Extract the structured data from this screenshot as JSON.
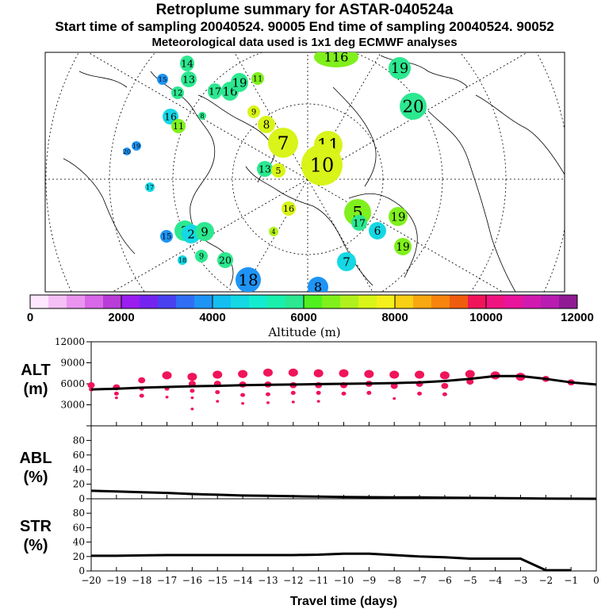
{
  "title": {
    "line1": "Retroplume summary for ASTAR-040524a",
    "line2": "Start time of sampling 20040524. 90005     End time of sampling 20040524. 90052",
    "line3": "Meteorological data used is 1x1 deg ECMWF analyses"
  },
  "colorbar": {
    "label": "Altitude (m)",
    "ticks": [
      "0",
      "2000",
      "4000",
      "6000",
      "8000",
      "10000",
      "12000"
    ],
    "colors": [
      "#ffe8ff",
      "#f5c0f5",
      "#ea94ef",
      "#d868e8",
      "#b83cd8",
      "#9a1ef0",
      "#7424f0",
      "#4a40f0",
      "#2f6ef5",
      "#1e94f5",
      "#14bff0",
      "#14d8e4",
      "#14ecd0",
      "#19f0ac",
      "#2ce890",
      "#50f01e",
      "#80f01c",
      "#b0f01c",
      "#d8f418",
      "#f4f01c",
      "#f8d014",
      "#f8a810",
      "#f8840e",
      "#f05c0e",
      "#f0145a",
      "#f01480",
      "#e8149c",
      "#d01ab0",
      "#b81cb0",
      "#901a94"
    ]
  },
  "map": {
    "labels": [
      {
        "t": "14",
        "c": "#2ce890"
      },
      {
        "t": "15",
        "c": "#1e94f5"
      },
      {
        "t": "13",
        "c": "#2ce890"
      },
      {
        "t": "12",
        "c": "#2ce890"
      },
      {
        "t": "17",
        "c": "#2ce890"
      },
      {
        "t": "16",
        "c": "#2ce890"
      },
      {
        "t": "19",
        "c": "#2ce890"
      },
      {
        "t": "11",
        "c": "#80f01c"
      },
      {
        "t": "116",
        "c": "#80f01c"
      },
      {
        "t": "19",
        "c": "#2ce890"
      },
      {
        "t": "20",
        "c": "#2ce890"
      },
      {
        "t": "16",
        "c": "#14d8e4"
      },
      {
        "t": "11",
        "c": "#80f01c"
      },
      {
        "t": "8",
        "c": "#2ce890"
      },
      {
        "t": "9",
        "c": "#d8f418"
      },
      {
        "t": "8",
        "c": "#d8f418"
      },
      {
        "t": "20",
        "c": "#1e94f5"
      },
      {
        "t": "19",
        "c": "#1e94f5"
      },
      {
        "t": "7",
        "c": "#d8f418"
      },
      {
        "t": "11",
        "c": "#d8f418"
      },
      {
        "t": "13",
        "c": "#2ce890"
      },
      {
        "t": "5",
        "c": "#d8f418"
      },
      {
        "t": "10",
        "c": "#d8f418"
      },
      {
        "t": "17",
        "c": "#14d8e4"
      },
      {
        "t": "16",
        "c": "#d8f418"
      },
      {
        "t": "4",
        "c": "#b0f01c"
      },
      {
        "t": "5",
        "c": "#80f01c"
      },
      {
        "t": "17",
        "c": "#2ce890"
      },
      {
        "t": "19",
        "c": "#80f01c"
      },
      {
        "t": "6",
        "c": "#14d8e4"
      },
      {
        "t": "15",
        "c": "#1e94f5"
      },
      {
        "t": "3",
        "c": "#2ce890"
      },
      {
        "t": "2",
        "c": "#14d8e4"
      },
      {
        "t": "9",
        "c": "#2ce890"
      },
      {
        "t": "19",
        "c": "#80f01c"
      },
      {
        "t": "18",
        "c": "#1e94f5"
      },
      {
        "t": "9",
        "c": "#2ce890"
      },
      {
        "t": "20",
        "c": "#2ce890"
      },
      {
        "t": "7",
        "c": "#14d8e4"
      },
      {
        "t": "18",
        "c": "#14d8e4"
      },
      {
        "t": "8",
        "c": "#1e94f5"
      }
    ]
  },
  "chart_data": [
    {
      "type": "line",
      "name": "ALT",
      "ylabel": "ALT (m)",
      "ylabel_lines": [
        "ALT",
        "(m)"
      ],
      "ylim": [
        0,
        12000
      ],
      "yticks": [
        0,
        3000,
        6000,
        9000,
        12000
      ],
      "ytick_labels": [
        "",
        "3000",
        "6000",
        "9000",
        "12000"
      ],
      "x": [
        -20,
        -19,
        -18,
        -17,
        -16,
        -15,
        -14,
        -13,
        -12,
        -11,
        -10,
        -9,
        -8,
        -7,
        -6,
        -5,
        -4,
        -3,
        -2,
        -1,
        0
      ],
      "values": [
        5200,
        5300,
        5450,
        5550,
        5650,
        5700,
        5800,
        5850,
        5900,
        5950,
        6000,
        6050,
        6100,
        6200,
        6400,
        6700,
        7100,
        7100,
        6700,
        6200,
        5900
      ],
      "scatter_color": "#f0145a",
      "scatter": [
        [
          -20,
          5200
        ],
        [
          -20,
          5800
        ],
        [
          -19,
          5500
        ],
        [
          -19,
          4600
        ],
        [
          -19,
          4000
        ],
        [
          -18,
          6500
        ],
        [
          -18,
          5300
        ],
        [
          -18,
          4300
        ],
        [
          -17,
          7200
        ],
        [
          -17,
          5300
        ],
        [
          -17,
          4100
        ],
        [
          -16,
          7000
        ],
        [
          -16,
          6000
        ],
        [
          -16,
          5000
        ],
        [
          -16,
          4000
        ],
        [
          -16,
          2400
        ],
        [
          -15,
          7300
        ],
        [
          -15,
          6000
        ],
        [
          -15,
          4800
        ],
        [
          -15,
          3500
        ],
        [
          -14,
          7400
        ],
        [
          -14,
          5900
        ],
        [
          -14,
          4400
        ],
        [
          -14,
          3200
        ],
        [
          -13,
          7600
        ],
        [
          -13,
          5900
        ],
        [
          -13,
          4500
        ],
        [
          -13,
          3300
        ],
        [
          -12,
          7600
        ],
        [
          -12,
          5800
        ],
        [
          -12,
          4700
        ],
        [
          -12,
          3400
        ],
        [
          -11,
          7500
        ],
        [
          -11,
          5800
        ],
        [
          -11,
          4700
        ],
        [
          -11,
          3500
        ],
        [
          -10,
          7500
        ],
        [
          -10,
          5800
        ],
        [
          -10,
          4600
        ],
        [
          -9,
          7400
        ],
        [
          -9,
          6000
        ],
        [
          -9,
          4700
        ],
        [
          -8,
          7300
        ],
        [
          -8,
          5700
        ],
        [
          -8,
          3900
        ],
        [
          -7,
          7300
        ],
        [
          -7,
          6000
        ],
        [
          -7,
          4600
        ],
        [
          -6,
          7200
        ],
        [
          -6,
          5700
        ],
        [
          -6,
          4500
        ],
        [
          -5,
          7400
        ],
        [
          -5,
          6300
        ],
        [
          -4,
          7200
        ],
        [
          -3,
          7000
        ],
        [
          -2,
          6700
        ],
        [
          -1,
          6200
        ]
      ]
    },
    {
      "type": "line",
      "name": "ABL",
      "ylabel": "ABL (%)",
      "ylabel_lines": [
        "ABL",
        "(%)"
      ],
      "ylim": [
        0,
        100
      ],
      "yticks": [
        0,
        20,
        40,
        60,
        80
      ],
      "ytick_labels": [
        "0",
        "20",
        "40",
        "60",
        "80"
      ],
      "x": [
        -20,
        -19,
        -18,
        -17,
        -16,
        -15,
        -14,
        -13,
        -12,
        -11,
        -10,
        -9,
        -8,
        -7,
        -6,
        -5,
        -4,
        -3,
        -2,
        -1,
        0
      ],
      "values": [
        11,
        10,
        9,
        8,
        6.5,
        5.5,
        4.5,
        4,
        3.5,
        3,
        2.5,
        2.2,
        2,
        1.8,
        1.5,
        1.2,
        1,
        0.6,
        0.3,
        0.1,
        0
      ]
    },
    {
      "type": "line",
      "name": "STR",
      "ylabel": "STR (%)",
      "ylabel_lines": [
        "STR",
        "(%)"
      ],
      "xlabel": "Travel time (days)",
      "ylim": [
        0,
        100
      ],
      "yticks": [
        0,
        20,
        40,
        60,
        80
      ],
      "ytick_labels": [
        "0",
        "20",
        "40",
        "60",
        "80"
      ],
      "xticks": [
        -20,
        -19,
        -18,
        -17,
        -16,
        -15,
        -14,
        -13,
        -12,
        -11,
        -10,
        -9,
        -8,
        -7,
        -6,
        -5,
        -4,
        -3,
        -2,
        -1,
        0
      ],
      "xtick_labels": [
        "−20",
        "−19",
        "−18",
        "−17",
        "−16",
        "−15",
        "−14",
        "−13",
        "−12",
        "−11",
        "−10",
        "−9",
        "−8",
        "−7",
        "−6",
        "−5",
        "−4",
        "−3",
        "−2",
        "−1",
        "0"
      ],
      "x": [
        -20,
        -19,
        -18,
        -17,
        -16,
        -15,
        -14,
        -13,
        -12,
        -11,
        -10,
        -9,
        -8,
        -7,
        -6,
        -5,
        -4,
        -3,
        -2,
        -1
      ],
      "values": [
        21,
        21,
        21.5,
        22,
        22,
        22,
        22,
        22,
        22,
        22.5,
        24,
        24,
        22,
        20,
        19,
        17,
        17,
        17,
        1,
        1
      ]
    }
  ]
}
